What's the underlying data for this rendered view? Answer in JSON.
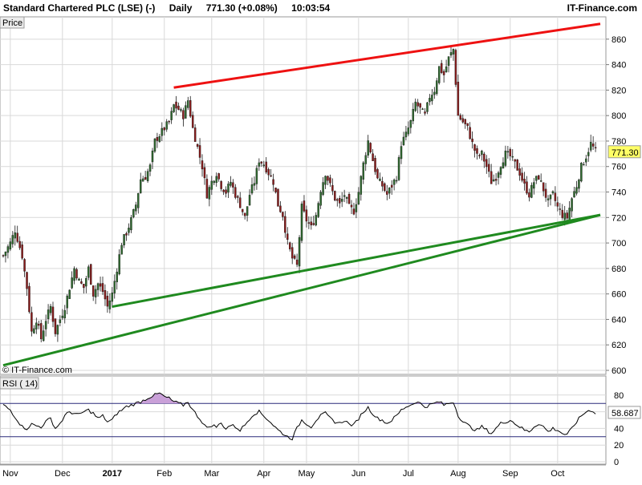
{
  "header": {
    "instrument": "Standard Chartered PLC (LSE) (-)",
    "interval": "Daily",
    "last_change": "771.30 (+0.08%)",
    "time": "10:03:54",
    "brand": "IT-Finance.com"
  },
  "price_panel": {
    "label": "Price",
    "watermark": "© IT-Finance.com",
    "current_price_label": "771.30"
  },
  "rsi_panel": {
    "label": "RSI ( 14)",
    "current_value_label": "58.687"
  },
  "colors": {
    "up_candle": "#2f6b2f",
    "down_candle": "#8b1a1a",
    "resistance_line": "#ee1111",
    "support_line": "#1f8a1f",
    "price_tag_bg": "#ffff66",
    "rsi_line": "#000000",
    "rsi_overbought_fill": "#c9a0d8",
    "rsi_band_line": "#2a2a7a",
    "grid": "#d9d9d9"
  },
  "chart_data": [
    {
      "type": "candlestick",
      "title": "Standard Chartered PLC (LSE) (-)",
      "ylim": [
        600,
        875
      ],
      "y_ticks": [
        600,
        620,
        640,
        660,
        680,
        700,
        720,
        740,
        760,
        780,
        800,
        820,
        840,
        860
      ],
      "x_tick_labels": [
        "Nov",
        "Dec",
        "2017",
        "Feb",
        "Mar",
        "Apr",
        "May",
        "Jun",
        "Jul",
        "Aug",
        "Sep",
        "Oct"
      ],
      "x_tick_index": [
        3,
        25,
        46,
        68,
        88,
        110,
        128,
        150,
        171,
        192,
        214,
        234
      ],
      "close_path": [
        [
          0,
          690
        ],
        [
          3,
          700
        ],
        [
          5,
          710
        ],
        [
          8,
          690
        ],
        [
          10,
          665
        ],
        [
          12,
          630
        ],
        [
          14,
          640
        ],
        [
          16,
          625
        ],
        [
          18,
          640
        ],
        [
          20,
          650
        ],
        [
          22,
          630
        ],
        [
          24,
          640
        ],
        [
          26,
          650
        ],
        [
          28,
          665
        ],
        [
          30,
          680
        ],
        [
          32,
          670
        ],
        [
          34,
          665
        ],
        [
          36,
          680
        ],
        [
          38,
          660
        ],
        [
          40,
          668
        ],
        [
          42,
          662
        ],
        [
          44,
          650
        ],
        [
          46,
          660
        ],
        [
          48,
          680
        ],
        [
          50,
          700
        ],
        [
          52,
          708
        ],
        [
          54,
          718
        ],
        [
          56,
          730
        ],
        [
          58,
          750
        ],
        [
          60,
          752
        ],
        [
          62,
          760
        ],
        [
          64,
          780
        ],
        [
          66,
          785
        ],
        [
          68,
          790
        ],
        [
          70,
          795
        ],
        [
          72,
          808
        ],
        [
          74,
          805
        ],
        [
          76,
          800
        ],
        [
          78,
          812
        ],
        [
          80,
          790
        ],
        [
          82,
          775
        ],
        [
          84,
          760
        ],
        [
          86,
          738
        ],
        [
          88,
          748
        ],
        [
          90,
          755
        ],
        [
          92,
          745
        ],
        [
          94,
          740
        ],
        [
          96,
          748
        ],
        [
          98,
          738
        ],
        [
          100,
          730
        ],
        [
          102,
          720
        ],
        [
          104,
          738
        ],
        [
          106,
          748
        ],
        [
          108,
          765
        ],
        [
          110,
          762
        ],
        [
          112,
          755
        ],
        [
          114,
          748
        ],
        [
          116,
          730
        ],
        [
          118,
          722
        ],
        [
          120,
          700
        ],
        [
          122,
          688
        ],
        [
          124,
          682
        ],
        [
          126,
          728
        ],
        [
          128,
          718
        ],
        [
          130,
          712
        ],
        [
          132,
          722
        ],
        [
          134,
          742
        ],
        [
          136,
          755
        ],
        [
          138,
          745
        ],
        [
          140,
          735
        ],
        [
          142,
          730
        ],
        [
          144,
          738
        ],
        [
          146,
          728
        ],
        [
          148,
          725
        ],
        [
          150,
          740
        ],
        [
          152,
          762
        ],
        [
          154,
          780
        ],
        [
          156,
          765
        ],
        [
          158,
          750
        ],
        [
          160,
          745
        ],
        [
          162,
          738
        ],
        [
          164,
          745
        ],
        [
          166,
          752
        ],
        [
          168,
          778
        ],
        [
          170,
          785
        ],
        [
          172,
          795
        ],
        [
          174,
          810
        ],
        [
          176,
          805
        ],
        [
          178,
          800
        ],
        [
          180,
          815
        ],
        [
          182,
          820
        ],
        [
          184,
          838
        ],
        [
          186,
          832
        ],
        [
          188,
          845
        ],
        [
          190,
          852
        ],
        [
          192,
          800
        ],
        [
          194,
          795
        ],
        [
          196,
          790
        ],
        [
          198,
          778
        ],
        [
          200,
          768
        ],
        [
          202,
          770
        ],
        [
          204,
          760
        ],
        [
          206,
          748
        ],
        [
          208,
          752
        ],
        [
          210,
          762
        ],
        [
          212,
          770
        ],
        [
          214,
          768
        ],
        [
          216,
          762
        ],
        [
          218,
          755
        ],
        [
          220,
          745
        ],
        [
          222,
          738
        ],
        [
          224,
          748
        ],
        [
          226,
          752
        ],
        [
          228,
          742
        ],
        [
          230,
          732
        ],
        [
          232,
          738
        ],
        [
          234,
          728
        ],
        [
          236,
          722
        ],
        [
          238,
          720
        ],
        [
          240,
          735
        ],
        [
          242,
          745
        ],
        [
          244,
          760
        ],
        [
          246,
          768
        ],
        [
          248,
          778
        ],
        [
          250,
          772
        ]
      ],
      "trendlines": [
        {
          "name": "resistance",
          "from": [
            72,
            822
          ],
          "to": [
            252,
            872
          ]
        },
        {
          "name": "support-long",
          "from": [
            0,
            604
          ],
          "to": [
            252,
            722
          ]
        },
        {
          "name": "support-short",
          "from": [
            46,
            650
          ],
          "to": [
            252,
            722
          ]
        }
      ],
      "last_price": 771.3
    },
    {
      "type": "line",
      "title": "RSI ( 14)",
      "ylim": [
        0,
        100
      ],
      "y_ticks": [
        0,
        20,
        40,
        60,
        80
      ],
      "bands": [
        30,
        70
      ],
      "close_path": [
        [
          0,
          68
        ],
        [
          3,
          62
        ],
        [
          6,
          50
        ],
        [
          8,
          42
        ],
        [
          10,
          40
        ],
        [
          12,
          45
        ],
        [
          14,
          43
        ],
        [
          16,
          42
        ],
        [
          18,
          48
        ],
        [
          20,
          52
        ],
        [
          22,
          40
        ],
        [
          24,
          46
        ],
        [
          26,
          55
        ],
        [
          28,
          60
        ],
        [
          30,
          58
        ],
        [
          32,
          56
        ],
        [
          34,
          60
        ],
        [
          36,
          62
        ],
        [
          38,
          58
        ],
        [
          40,
          52
        ],
        [
          42,
          55
        ],
        [
          44,
          48
        ],
        [
          46,
          50
        ],
        [
          48,
          58
        ],
        [
          50,
          62
        ],
        [
          52,
          66
        ],
        [
          54,
          68
        ],
        [
          56,
          70
        ],
        [
          58,
          72
        ],
        [
          60,
          75
        ],
        [
          62,
          78
        ],
        [
          64,
          80
        ],
        [
          66,
          82
        ],
        [
          68,
          78
        ],
        [
          70,
          76
        ],
        [
          72,
          72
        ],
        [
          74,
          70
        ],
        [
          76,
          68
        ],
        [
          78,
          72
        ],
        [
          80,
          62
        ],
        [
          82,
          55
        ],
        [
          84,
          48
        ],
        [
          86,
          40
        ],
        [
          88,
          44
        ],
        [
          90,
          42
        ],
        [
          92,
          46
        ],
        [
          94,
          40
        ],
        [
          96,
          44
        ],
        [
          98,
          42
        ],
        [
          100,
          38
        ],
        [
          102,
          44
        ],
        [
          104,
          52
        ],
        [
          106,
          58
        ],
        [
          108,
          60
        ],
        [
          110,
          55
        ],
        [
          112,
          50
        ],
        [
          114,
          44
        ],
        [
          116,
          38
        ],
        [
          118,
          34
        ],
        [
          120,
          30
        ],
        [
          122,
          28
        ],
        [
          124,
          40
        ],
        [
          126,
          50
        ],
        [
          128,
          46
        ],
        [
          130,
          42
        ],
        [
          132,
          50
        ],
        [
          134,
          55
        ],
        [
          136,
          58
        ],
        [
          138,
          52
        ],
        [
          140,
          48
        ],
        [
          142,
          46
        ],
        [
          144,
          50
        ],
        [
          146,
          45
        ],
        [
          148,
          44
        ],
        [
          150,
          52
        ],
        [
          152,
          60
        ],
        [
          154,
          65
        ],
        [
          156,
          58
        ],
        [
          158,
          52
        ],
        [
          160,
          50
        ],
        [
          162,
          46
        ],
        [
          164,
          50
        ],
        [
          166,
          55
        ],
        [
          168,
          62
        ],
        [
          170,
          66
        ],
        [
          172,
          68
        ],
        [
          174,
          72
        ],
        [
          176,
          70
        ],
        [
          178,
          66
        ],
        [
          180,
          68
        ],
        [
          182,
          70
        ],
        [
          184,
          72
        ],
        [
          186,
          68
        ],
        [
          188,
          70
        ],
        [
          190,
          72
        ],
        [
          192,
          56
        ],
        [
          194,
          48
        ],
        [
          196,
          44
        ],
        [
          198,
          40
        ],
        [
          200,
          38
        ],
        [
          202,
          42
        ],
        [
          204,
          38
        ],
        [
          206,
          34
        ],
        [
          208,
          40
        ],
        [
          210,
          46
        ],
        [
          212,
          48
        ],
        [
          214,
          50
        ],
        [
          216,
          46
        ],
        [
          218,
          42
        ],
        [
          220,
          38
        ],
        [
          222,
          36
        ],
        [
          224,
          42
        ],
        [
          226,
          46
        ],
        [
          228,
          42
        ],
        [
          230,
          36
        ],
        [
          232,
          40
        ],
        [
          234,
          38
        ],
        [
          236,
          34
        ],
        [
          238,
          32
        ],
        [
          240,
          40
        ],
        [
          242,
          48
        ],
        [
          244,
          55
        ],
        [
          246,
          60
        ],
        [
          248,
          62
        ],
        [
          250,
          58.687
        ]
      ],
      "last_value": 58.687
    }
  ]
}
